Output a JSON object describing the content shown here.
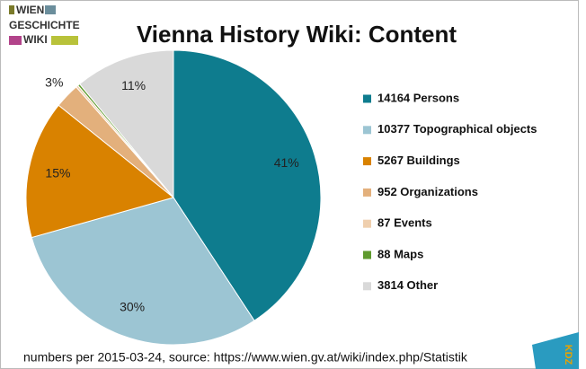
{
  "chart_data": {
    "type": "pie",
    "title": "Vienna History Wiki: Content",
    "logo_text": [
      "WIEN",
      "GESCHICHTE",
      "WIKI"
    ],
    "corner_logo": "KDZ",
    "categories": [
      "14164 Persons",
      "10377 Topographical objects",
      "5267 Buildings",
      "952 Organizations",
      "87 Events",
      "88 Maps",
      "3814 Other"
    ],
    "values": [
      40.76,
      29.86,
      15.16,
      2.74,
      0.25,
      0.25,
      10.98
    ],
    "value_labels": [
      "41%",
      "30%",
      "15%",
      "3%",
      null,
      null,
      "11%"
    ],
    "colors": [
      "#0e7c8e",
      "#9cc5d3",
      "#d98200",
      "#e3b07c",
      "#efcfae",
      "#5f9a2e",
      "#d9d9d9"
    ],
    "legend": "right",
    "footnote": "numbers per 2015-03-24, source: https://www.wien.gv.at/wiki/index.php/Statistik"
  }
}
